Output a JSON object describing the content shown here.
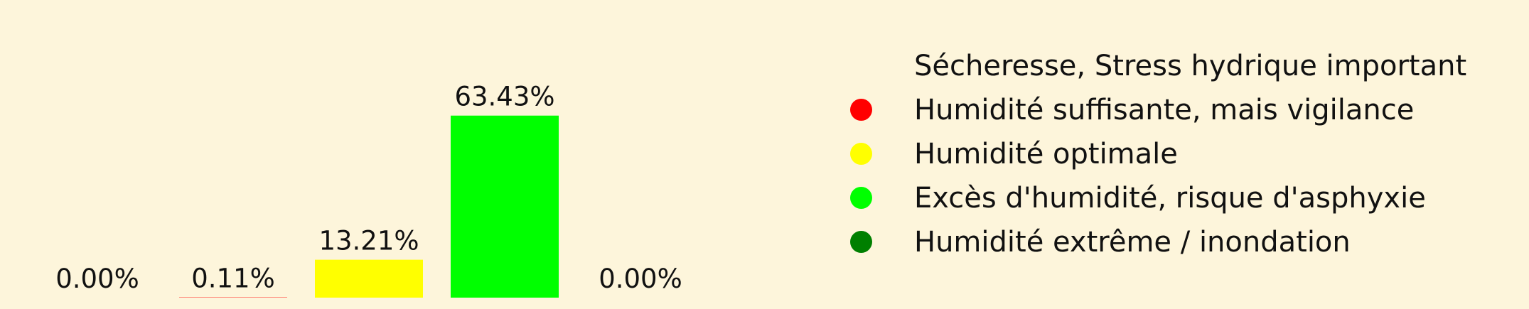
{
  "chart_data": {
    "type": "bar",
    "categories": [
      "Sécheresse, Stress hydrique important",
      "Humidité suffisante, mais vigilance",
      "Humidité optimale",
      "Excès d'humidité, risque d'asphyxie",
      "Humidité extrême / inondation"
    ],
    "values": [
      0.0,
      0.11,
      13.21,
      63.43,
      0.0
    ],
    "value_labels": [
      "0.00%",
      "0.11%",
      "13.21%",
      "63.43%",
      "0.00%"
    ],
    "colors": [
      "#fdf5db",
      "#ff0000",
      "#ffff00",
      "#00ff00",
      "#007f00"
    ],
    "title": "",
    "xlabel": "",
    "ylabel": "",
    "ylim": [
      0,
      70
    ],
    "grid": false,
    "legend_placement": "right"
  }
}
